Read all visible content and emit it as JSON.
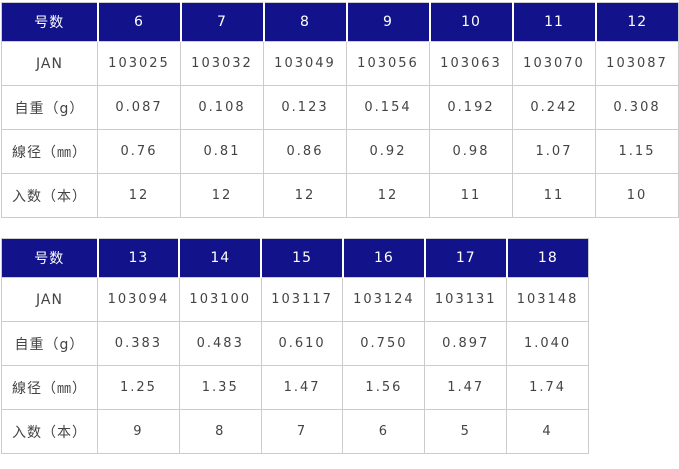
{
  "colors": {
    "header_bg": "#12128a",
    "header_text": "#ffffff",
    "body_text": "#444444",
    "border": "#cccccc"
  },
  "tables": [
    {
      "header": {
        "label": "号数",
        "sizes": [
          "6",
          "7",
          "8",
          "9",
          "10",
          "11",
          "12"
        ]
      },
      "rows": [
        {
          "label": "JAN",
          "values": [
            "103025",
            "103032",
            "103049",
            "103056",
            "103063",
            "103070",
            "103087"
          ]
        },
        {
          "label": "自重（g）",
          "values": [
            "0.087",
            "0.108",
            "0.123",
            "0.154",
            "0.192",
            "0.242",
            "0.308"
          ]
        },
        {
          "label": "線径（㎜）",
          "values": [
            "0.76",
            "0.81",
            "0.86",
            "0.92",
            "0.98",
            "1.07",
            "1.15"
          ]
        },
        {
          "label": "入数（本）",
          "values": [
            "12",
            "12",
            "12",
            "12",
            "11",
            "11",
            "10"
          ]
        }
      ]
    },
    {
      "header": {
        "label": "号数",
        "sizes": [
          "13",
          "14",
          "15",
          "16",
          "17",
          "18"
        ]
      },
      "rows": [
        {
          "label": "JAN",
          "values": [
            "103094",
            "103100",
            "103117",
            "103124",
            "103131",
            "103148"
          ]
        },
        {
          "label": "自重（g）",
          "values": [
            "0.383",
            "0.483",
            "0.610",
            "0.750",
            "0.897",
            "1.040"
          ]
        },
        {
          "label": "線径（㎜）",
          "values": [
            "1.25",
            "1.35",
            "1.47",
            "1.56",
            "1.47",
            "1.74"
          ]
        },
        {
          "label": "入数（本）",
          "values": [
            "9",
            "8",
            "7",
            "6",
            "5",
            "4"
          ]
        }
      ]
    }
  ]
}
